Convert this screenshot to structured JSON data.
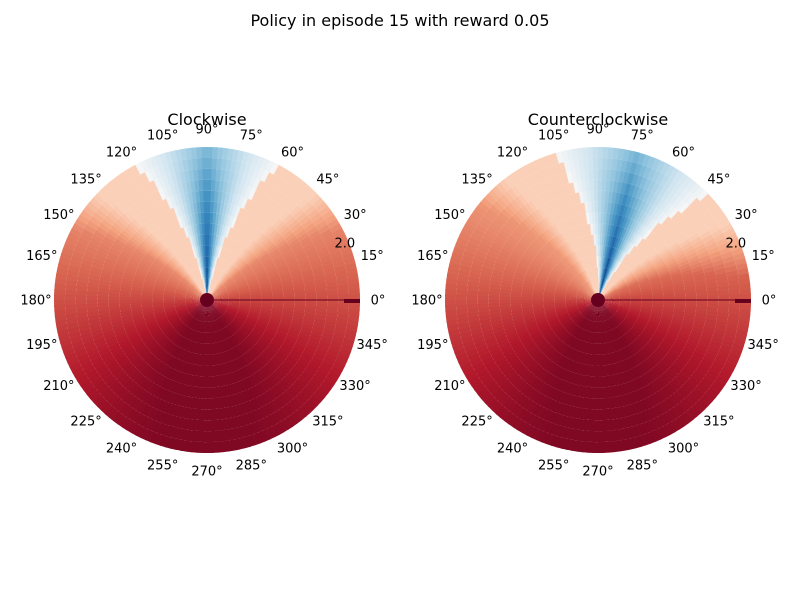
{
  "figure": {
    "title": "Policy in episode 15 with reward 0.05"
  },
  "chart_data": [
    {
      "type": "heatmap",
      "projection": "polar",
      "title": "Clockwise",
      "angle_ticks": [
        "0°",
        "15°",
        "30°",
        "45°",
        "60°",
        "75°",
        "90°",
        "105°",
        "120°",
        "135°",
        "150°",
        "165°",
        "180°",
        "195°",
        "210°",
        "225°",
        "240°",
        "255°",
        "270°",
        "285°",
        "300°",
        "315°",
        "330°",
        "345°"
      ],
      "radial_tick": "2.0",
      "colormap": "RdBu_r",
      "low_lobe": {
        "direction_deg": 90,
        "width_deg": 28
      },
      "cold_colors": [
        "#053061",
        "#2166ac",
        "#4393c3",
        "#92c5de",
        "#d1e5f0",
        "#f7f7f7"
      ],
      "warm_colors": [
        "#fddbc7",
        "#f4a582",
        "#d6604d",
        "#b2182b",
        "#67001f"
      ]
    },
    {
      "type": "heatmap",
      "projection": "polar",
      "title": "Counterclockwise",
      "angle_ticks": [
        "0°",
        "15°",
        "30°",
        "45°",
        "60°",
        "75°",
        "90°",
        "105°",
        "120°",
        "135°",
        "150°",
        "165°",
        "180°",
        "195°",
        "210°",
        "225°",
        "240°",
        "255°",
        "270°",
        "285°",
        "300°",
        "315°",
        "330°",
        "345°"
      ],
      "radial_tick": "2.0",
      "colormap": "RdBu_r",
      "low_lobe": {
        "direction_deg": 75,
        "width_deg": 32
      },
      "cold_colors": [
        "#053061",
        "#2166ac",
        "#4393c3",
        "#92c5de",
        "#d1e5f0",
        "#f7f7f7"
      ],
      "warm_colors": [
        "#fddbc7",
        "#f4a582",
        "#d6604d",
        "#b2182b",
        "#67001f"
      ]
    }
  ]
}
